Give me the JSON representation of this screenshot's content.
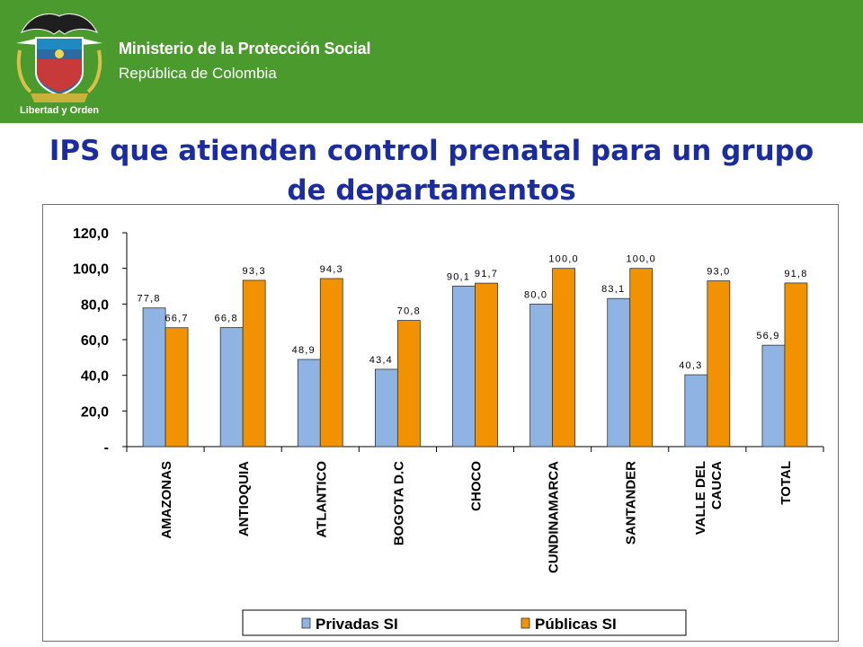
{
  "header": {
    "ministry": "Ministerio de la Protección Social",
    "republic": "República de Colombia",
    "logo_text": "Libertad y Orden",
    "background_color": "#4b9a2d"
  },
  "slide": {
    "title_line1": "IPS que atienden control prenatal para un grupo",
    "title_line2": "de departamentos",
    "title_color": "#1a2ca0"
  },
  "chart_data": {
    "type": "bar",
    "categories": [
      [
        "AMAZONAS"
      ],
      [
        "ANTIOQUIA"
      ],
      [
        "ATLANTICO"
      ],
      [
        "BOGOTA D.C"
      ],
      [
        "CHOCO"
      ],
      [
        "CUNDINAMARCA"
      ],
      [
        "SANTANDER"
      ],
      [
        "VALLE DEL",
        "CAUCA"
      ],
      [
        "TOTAL"
      ]
    ],
    "series": [
      {
        "name": "Privadas SI",
        "color": "#8fb4e3",
        "values": [
          77.8,
          66.8,
          48.9,
          43.4,
          90.1,
          80.0,
          83.1,
          40.3,
          56.9
        ],
        "labels": [
          "77,8",
          "66,8",
          "48,9",
          "43,4",
          "90,1",
          "80,0",
          "83,1",
          "40,3",
          "56,9"
        ]
      },
      {
        "name": "Públicas SI",
        "color": "#f39200",
        "values": [
          66.7,
          93.3,
          94.3,
          70.8,
          91.7,
          100.0,
          100.0,
          93.0,
          91.8
        ],
        "labels": [
          "66,7",
          "93,3",
          "94,3",
          "70,8",
          "91,7",
          "100,0",
          "100,0",
          "93,0",
          "91,8"
        ]
      }
    ],
    "y_ticks": [
      "-",
      "20,0",
      "40,0",
      "60,0",
      "80,0",
      "100,0",
      "120,0"
    ],
    "ylim": [
      0,
      120
    ],
    "grid": false,
    "legend_position": "bottom"
  }
}
